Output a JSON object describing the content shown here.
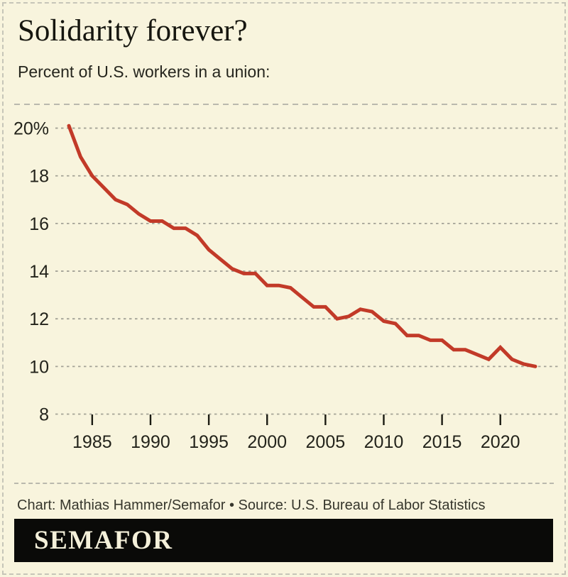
{
  "chart_data": {
    "type": "line",
    "title": "Solidarity forever?",
    "subtitle": "Percent of U.S. workers in a union:",
    "series_name": "Percent of U.S. workers in a union",
    "x": [
      1983,
      1984,
      1985,
      1986,
      1987,
      1988,
      1989,
      1990,
      1991,
      1992,
      1993,
      1994,
      1995,
      1996,
      1997,
      1998,
      1999,
      2000,
      2001,
      2002,
      2003,
      2004,
      2005,
      2006,
      2007,
      2008,
      2009,
      2010,
      2011,
      2012,
      2013,
      2014,
      2015,
      2016,
      2017,
      2018,
      2019,
      2020,
      2021,
      2022,
      2023
    ],
    "values": [
      20.1,
      18.8,
      18.0,
      17.5,
      17.0,
      16.8,
      16.4,
      16.1,
      16.1,
      15.8,
      15.8,
      15.5,
      14.9,
      14.5,
      14.1,
      13.9,
      13.9,
      13.4,
      13.4,
      13.3,
      12.9,
      12.5,
      12.5,
      12.0,
      12.1,
      12.4,
      12.3,
      11.9,
      11.8,
      11.3,
      11.3,
      11.1,
      11.1,
      10.7,
      10.7,
      10.5,
      10.3,
      10.8,
      10.3,
      10.1,
      10.0
    ],
    "ylim": [
      8,
      21
    ],
    "yticks": [
      20,
      18,
      16,
      14,
      12,
      10,
      8
    ],
    "ytick_labels": [
      "20%",
      "18",
      "16",
      "14",
      "12",
      "10",
      "8"
    ],
    "xticks": [
      1985,
      1990,
      1995,
      2000,
      2005,
      2010,
      2015,
      2020
    ],
    "xlabel": "",
    "ylabel": "",
    "grid": "horizontal-dashed",
    "legend": "none",
    "line_color": "#c23a28"
  },
  "footer": {
    "credit": "Chart: Mathias Hammer/Semafor • Source: U.S. Bureau of Labor Statistics"
  },
  "logo": {
    "text": "SEMAFOR"
  },
  "colors": {
    "background": "#f8f4dd",
    "line_red": "#c23a28",
    "logo_bar_bg": "#0a0a08",
    "logo_text": "#f4f0da",
    "gridline": "#a3a296"
  }
}
